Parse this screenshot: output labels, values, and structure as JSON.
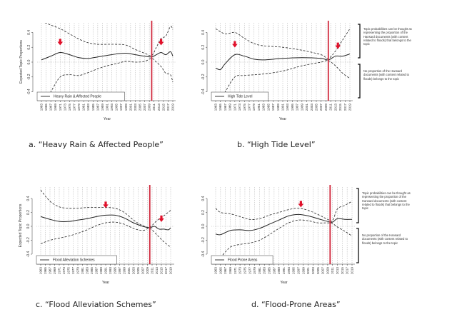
{
  "chart_data": [
    {
      "type": "line",
      "caption": "a. “Heavy Rain & Affected People”",
      "legend": "Heavy Rain & Affected People",
      "xlabel": "Year",
      "ylabel": "Expected Topic Proportions",
      "ylim": [
        -0.5,
        0.55
      ],
      "yticks": [
        "0.4",
        "0.2",
        "0.0",
        "-0.2",
        "-0.4"
      ],
      "ytick_values": [
        0.4,
        0.2,
        0.0,
        -0.2,
        -0.4
      ],
      "xlim": [
        1963,
        2019
      ],
      "event_year": 2010,
      "arrow_years": [
        1971,
        2014
      ],
      "mean": [
        [
          1963,
          0.03
        ],
        [
          1967,
          0.08
        ],
        [
          1971,
          0.13
        ],
        [
          1975,
          0.1
        ],
        [
          1979,
          0.06
        ],
        [
          1983,
          0.05
        ],
        [
          1987,
          0.07
        ],
        [
          1991,
          0.09
        ],
        [
          1995,
          0.11
        ],
        [
          1999,
          0.12
        ],
        [
          2003,
          0.1
        ],
        [
          2007,
          0.08
        ],
        [
          2010,
          0.07
        ],
        [
          2012,
          0.1
        ],
        [
          2014,
          0.13
        ],
        [
          2016,
          0.1
        ],
        [
          2018,
          0.14
        ],
        [
          2019,
          0.08
        ]
      ],
      "upper": [
        [
          1963,
          0.55
        ],
        [
          1967,
          0.5
        ],
        [
          1971,
          0.45
        ],
        [
          1975,
          0.38
        ],
        [
          1979,
          0.31
        ],
        [
          1983,
          0.26
        ],
        [
          1987,
          0.24
        ],
        [
          1991,
          0.24
        ],
        [
          1995,
          0.24
        ],
        [
          1999,
          0.23
        ],
        [
          2003,
          0.17
        ],
        [
          2007,
          0.12
        ],
        [
          2010,
          0.09
        ],
        [
          2012,
          0.2
        ],
        [
          2014,
          0.32
        ],
        [
          2016,
          0.35
        ],
        [
          2018,
          0.48
        ],
        [
          2019,
          0.44
        ]
      ],
      "lower": [
        [
          1963,
          -0.62
        ],
        [
          1967,
          -0.4
        ],
        [
          1971,
          -0.2
        ],
        [
          1975,
          -0.17
        ],
        [
          1979,
          -0.18
        ],
        [
          1983,
          -0.14
        ],
        [
          1987,
          -0.09
        ],
        [
          1991,
          -0.05
        ],
        [
          1995,
          -0.02
        ],
        [
          1999,
          0.01
        ],
        [
          2003,
          0.0
        ],
        [
          2007,
          0.01
        ],
        [
          2010,
          0.05
        ],
        [
          2012,
          0.0
        ],
        [
          2014,
          -0.06
        ],
        [
          2016,
          -0.15
        ],
        [
          2018,
          -0.17
        ],
        [
          2019,
          -0.27
        ]
      ]
    },
    {
      "type": "line",
      "caption": "b. “High Tide Level”",
      "legend": "High Tide Level",
      "xlabel": "Year",
      "ylabel": "",
      "ylim": [
        -0.5,
        0.55
      ],
      "yticks": [
        "0.4",
        "0.2",
        "0.0",
        "-0.2",
        "-0.4"
      ],
      "ytick_values": [
        0.4,
        0.2,
        0.0,
        -0.2,
        -0.4
      ],
      "xlim": [
        1963,
        2019
      ],
      "event_year": 2010,
      "arrow_years": [
        1971,
        2014
      ],
      "mean": [
        [
          1963,
          -0.08
        ],
        [
          1965,
          -0.1
        ],
        [
          1967,
          -0.02
        ],
        [
          1971,
          0.1
        ],
        [
          1975,
          0.08
        ],
        [
          1979,
          0.04
        ],
        [
          1983,
          0.03
        ],
        [
          1991,
          0.05
        ],
        [
          1999,
          0.06
        ],
        [
          2007,
          0.05
        ],
        [
          2010,
          0.03
        ],
        [
          2013,
          0.08
        ],
        [
          2016,
          0.08
        ],
        [
          2019,
          0.11
        ]
      ],
      "upper": [
        [
          1963,
          0.45
        ],
        [
          1967,
          0.38
        ],
        [
          1971,
          0.4
        ],
        [
          1975,
          0.32
        ],
        [
          1979,
          0.25
        ],
        [
          1983,
          0.22
        ],
        [
          1991,
          0.2
        ],
        [
          1999,
          0.16
        ],
        [
          2007,
          0.1
        ],
        [
          2010,
          0.05
        ],
        [
          2013,
          0.15
        ],
        [
          2016,
          0.3
        ],
        [
          2019,
          0.45
        ]
      ],
      "lower": [
        [
          1963,
          -0.62
        ],
        [
          1967,
          -0.4
        ],
        [
          1971,
          -0.2
        ],
        [
          1975,
          -0.18
        ],
        [
          1983,
          -0.16
        ],
        [
          1991,
          -0.12
        ],
        [
          1999,
          -0.05
        ],
        [
          2007,
          0.0
        ],
        [
          2010,
          0.02
        ],
        [
          2013,
          -0.05
        ],
        [
          2016,
          -0.15
        ],
        [
          2019,
          -0.22
        ]
      ]
    },
    {
      "type": "line",
      "caption": "c. “Flood Alleviation Schemes”",
      "legend": "Flood Alleviation Schemes",
      "xlabel": "Year",
      "ylabel": "Expected Topic Proportions",
      "ylim": [
        -0.5,
        0.55
      ],
      "yticks": [
        "0.4",
        "0.2",
        "0.0",
        "-0.2",
        "-0.4"
      ],
      "ytick_values": [
        0.4,
        0.2,
        0.0,
        -0.2,
        -0.4
      ],
      "xlim": [
        1963,
        2019
      ],
      "event_year": 2010,
      "arrow_years": [
        1991,
        2015
      ],
      "mean": [
        [
          1963,
          0.14
        ],
        [
          1967,
          0.1
        ],
        [
          1971,
          0.07
        ],
        [
          1975,
          0.07
        ],
        [
          1979,
          0.09
        ],
        [
          1983,
          0.11
        ],
        [
          1987,
          0.14
        ],
        [
          1991,
          0.16
        ],
        [
          1995,
          0.16
        ],
        [
          1999,
          0.12
        ],
        [
          2003,
          0.05
        ],
        [
          2007,
          0.0
        ],
        [
          2010,
          -0.02
        ],
        [
          2012,
          0.0
        ],
        [
          2014,
          -0.04
        ],
        [
          2016,
          -0.04
        ],
        [
          2018,
          -0.05
        ],
        [
          2019,
          -0.02
        ]
      ],
      "upper": [
        [
          1963,
          0.52
        ],
        [
          1967,
          0.36
        ],
        [
          1971,
          0.28
        ],
        [
          1975,
          0.26
        ],
        [
          1979,
          0.26
        ],
        [
          1983,
          0.27
        ],
        [
          1987,
          0.27
        ],
        [
          1991,
          0.27
        ],
        [
          1995,
          0.26
        ],
        [
          1999,
          0.2
        ],
        [
          2003,
          0.09
        ],
        [
          2007,
          0.01
        ],
        [
          2010,
          -0.01
        ],
        [
          2013,
          0.08
        ],
        [
          2016,
          0.15
        ],
        [
          2019,
          0.23
        ]
      ],
      "lower": [
        [
          1963,
          -0.25
        ],
        [
          1967,
          -0.2
        ],
        [
          1971,
          -0.17
        ],
        [
          1975,
          -0.14
        ],
        [
          1979,
          -0.1
        ],
        [
          1983,
          -0.05
        ],
        [
          1987,
          0.01
        ],
        [
          1991,
          0.05
        ],
        [
          1995,
          0.06
        ],
        [
          1999,
          0.03
        ],
        [
          2003,
          -0.03
        ],
        [
          2007,
          -0.06
        ],
        [
          2010,
          -0.03
        ],
        [
          2013,
          -0.12
        ],
        [
          2016,
          -0.22
        ],
        [
          2019,
          -0.3
        ]
      ]
    },
    {
      "type": "line",
      "caption": "d. “Flood-Prone Areas”",
      "legend": "Flood Prone Areas",
      "xlabel": "Year",
      "ylabel": "",
      "ylim": [
        -0.5,
        0.55
      ],
      "yticks": [
        "0.4",
        "0.2",
        "0.0",
        "-0.2",
        "-0.4"
      ],
      "ytick_values": [
        0.4,
        0.2,
        0.0,
        -0.2,
        -0.4
      ],
      "xlim": [
        1963,
        2019
      ],
      "event_year": 2010,
      "arrow_years": [
        1998
      ],
      "mean": [
        [
          1963,
          -0.11
        ],
        [
          1965,
          -0.12
        ],
        [
          1969,
          -0.06
        ],
        [
          1973,
          -0.05
        ],
        [
          1977,
          -0.06
        ],
        [
          1981,
          -0.03
        ],
        [
          1985,
          0.03
        ],
        [
          1989,
          0.09
        ],
        [
          1993,
          0.15
        ],
        [
          1997,
          0.17
        ],
        [
          2001,
          0.15
        ],
        [
          2005,
          0.11
        ],
        [
          2009,
          0.07
        ],
        [
          2011,
          0.06
        ],
        [
          2013,
          0.11
        ],
        [
          2016,
          0.1
        ],
        [
          2019,
          0.1
        ]
      ],
      "upper": [
        [
          1963,
          0.26
        ],
        [
          1965,
          0.2
        ],
        [
          1969,
          0.18
        ],
        [
          1973,
          0.14
        ],
        [
          1977,
          0.1
        ],
        [
          1981,
          0.11
        ],
        [
          1985,
          0.16
        ],
        [
          1989,
          0.2
        ],
        [
          1993,
          0.24
        ],
        [
          1997,
          0.26
        ],
        [
          2001,
          0.23
        ],
        [
          2005,
          0.17
        ],
        [
          2009,
          0.1
        ],
        [
          2011,
          0.08
        ],
        [
          2013,
          0.25
        ],
        [
          2016,
          0.3
        ],
        [
          2019,
          0.36
        ]
      ],
      "lower": [
        [
          1965,
          -0.45
        ],
        [
          1969,
          -0.3
        ],
        [
          1973,
          -0.26
        ],
        [
          1977,
          -0.24
        ],
        [
          1981,
          -0.2
        ],
        [
          1985,
          -0.12
        ],
        [
          1989,
          -0.03
        ],
        [
          1993,
          0.05
        ],
        [
          1997,
          0.09
        ],
        [
          2001,
          0.08
        ],
        [
          2005,
          0.05
        ],
        [
          2009,
          0.05
        ],
        [
          2011,
          0.04
        ],
        [
          2013,
          -0.01
        ],
        [
          2016,
          -0.07
        ],
        [
          2019,
          -0.14
        ]
      ]
    }
  ],
  "annotations": {
    "upper_note": "Topic probabilities can be thought as representing the proportion of the Hansard documents (with content related to floods) that belongs to the topic",
    "lower_note": "No proportion of the Hansard documents (with content related to floods) belongs to the topic"
  },
  "colors": {
    "event_line": "#d0283c",
    "arrow": "#e0102a",
    "line": "#222222"
  }
}
